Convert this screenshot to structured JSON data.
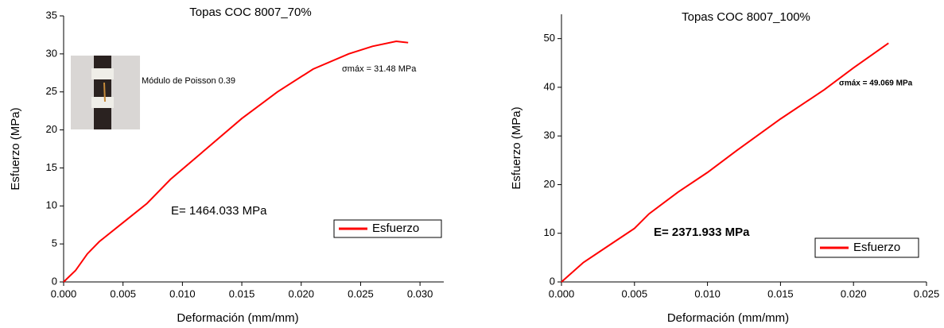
{
  "chart_data": [
    {
      "type": "line",
      "title": "Topas COC 8007_70%",
      "x_label": "Deformación (mm/mm)",
      "y_label": "Esfuerzo (MPa)",
      "x": [
        0,
        0.001,
        0.002,
        0.003,
        0.005,
        0.007,
        0.009,
        0.012,
        0.015,
        0.018,
        0.021,
        0.024,
        0.026,
        0.028,
        0.029
      ],
      "series": [
        {
          "name": "Esfuerzo",
          "color": "#ff0000",
          "values": [
            0,
            1.5,
            3.7,
            5.3,
            7.8,
            10.3,
            13.5,
            17.5,
            21.5,
            25,
            28,
            30,
            31,
            31.65,
            31.48
          ]
        }
      ],
      "xlim": [
        0,
        0.032
      ],
      "ylim": [
        0,
        35
      ],
      "xticks": [
        {
          "value": 0,
          "label": "0.000"
        },
        {
          "value": 0.005,
          "label": "0.005"
        },
        {
          "value": 0.01,
          "label": "0.010"
        },
        {
          "value": 0.015,
          "label": "0.015"
        },
        {
          "value": 0.02,
          "label": "0.020"
        },
        {
          "value": 0.025,
          "label": "0.025"
        },
        {
          "value": 0.03,
          "label": "0.030"
        }
      ],
      "yticks": [
        0,
        5,
        10,
        15,
        20,
        25,
        30,
        35
      ],
      "annotations": [
        "σmáx = 31.48 MPa",
        "Módulo de Poisson 0.39",
        "E= 1464.033 MPa"
      ]
    },
    {
      "type": "line",
      "title": "Topas COC 8007_100%",
      "x_label": "Deformación (mm/mm)",
      "y_label": "Esfuerzo (MPa)",
      "x": [
        0,
        0.0015,
        0.003,
        0.005,
        0.006,
        0.008,
        0.01,
        0.012,
        0.015,
        0.018,
        0.02,
        0.0224
      ],
      "series": [
        {
          "name": "Esfuerzo",
          "color": "#ff0000",
          "values": [
            0,
            4,
            7,
            11,
            14,
            18.5,
            22.5,
            27,
            33.5,
            39.5,
            44,
            49.07
          ]
        }
      ],
      "xlim": [
        0,
        0.025
      ],
      "ylim": [
        0,
        55
      ],
      "xticks": [
        {
          "value": 0,
          "label": "0.000"
        },
        {
          "value": 0.005,
          "label": "0.005"
        },
        {
          "value": 0.01,
          "label": "0.010"
        },
        {
          "value": 0.015,
          "label": "0.015"
        },
        {
          "value": 0.02,
          "label": "0.020"
        },
        {
          "value": 0.025,
          "label": "0.025"
        }
      ],
      "yticks": [
        0,
        10,
        20,
        30,
        40,
        50
      ],
      "annotations": [
        "σmáx = 49.069 MPa",
        "E= 2371.933 MPa"
      ]
    }
  ]
}
